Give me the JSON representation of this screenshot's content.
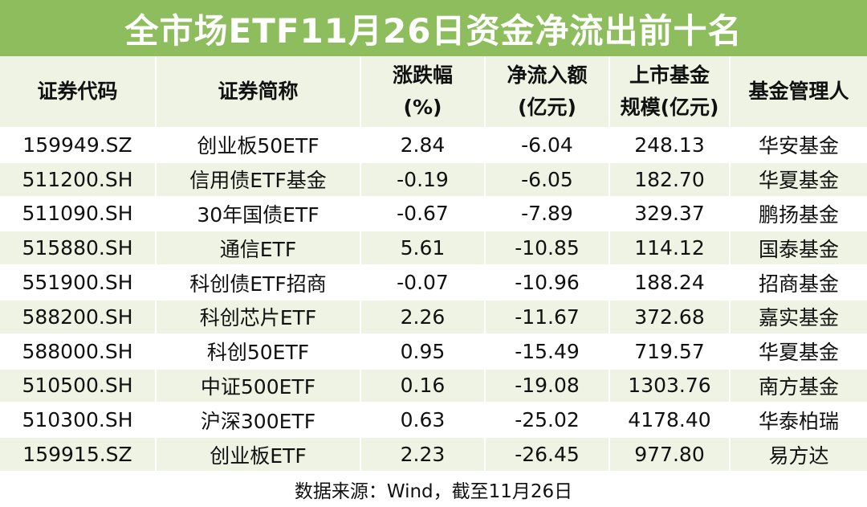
{
  "header": {
    "title": "全市场ETF11月26日资金净流出前十名"
  },
  "table": {
    "columns": [
      [
        "证券代码"
      ],
      [
        "证券简称"
      ],
      [
        "涨跌幅",
        "(%)"
      ],
      [
        "净流入额",
        "(亿元)"
      ],
      [
        "上市基金",
        "规模(亿元)"
      ],
      [
        "基金管理人"
      ]
    ],
    "rows": [
      [
        "159949.SZ",
        "创业板50ETF",
        "2.84",
        "-6.04",
        "248.13",
        "华安基金"
      ],
      [
        "511200.SH",
        "信用债ETF基金",
        "-0.19",
        "-6.05",
        "182.70",
        "华夏基金"
      ],
      [
        "511090.SH",
        "30年国债ETF",
        "-0.67",
        "-7.89",
        "329.37",
        "鹏扬基金"
      ],
      [
        "515880.SH",
        "通信ETF",
        "5.61",
        "-10.85",
        "114.12",
        "国泰基金"
      ],
      [
        "551900.SH",
        "科创债ETF招商",
        "-0.07",
        "-10.96",
        "188.24",
        "招商基金"
      ],
      [
        "588200.SH",
        "科创芯片ETF",
        "2.26",
        "-11.67",
        "372.68",
        "嘉实基金"
      ],
      [
        "588000.SH",
        "科创50ETF",
        "0.95",
        "-15.49",
        "719.57",
        "华夏基金"
      ],
      [
        "510500.SH",
        "中证500ETF",
        "0.16",
        "-19.08",
        "1303.76",
        "南方基金"
      ],
      [
        "510300.SH",
        "沪深300ETF",
        "0.63",
        "-25.02",
        "4178.40",
        "华泰柏瑞"
      ],
      [
        "159915.SZ",
        "创业板ETF",
        "2.23",
        "-26.45",
        "977.80",
        "易方达"
      ]
    ]
  },
  "footer": {
    "source": "数据来源：Wind，截至11月26日"
  }
}
